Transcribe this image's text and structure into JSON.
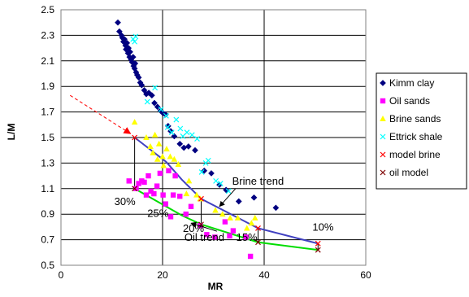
{
  "chart_data": {
    "type": "scatter",
    "xlabel": "MR",
    "ylabel": "L/M",
    "xlim": [
      0,
      60
    ],
    "ylim": [
      0.5,
      2.5
    ],
    "x_ticks": [
      "0",
      "20",
      "40",
      "60"
    ],
    "y_ticks": [
      "0.5",
      "0.7",
      "0.9",
      "1.1",
      "1.3",
      "1.5",
      "1.7",
      "1.9",
      "2.1",
      "2.3",
      "2.5"
    ],
    "grid": "major gridlines",
    "legend": "right",
    "series": [
      {
        "name": "Kimm clay",
        "marker": "diamond",
        "color": "#000080",
        "points": [
          [
            11.2,
            2.4
          ],
          [
            11.5,
            2.33
          ],
          [
            11.9,
            2.3
          ],
          [
            12.1,
            2.28
          ],
          [
            12.3,
            2.25
          ],
          [
            12.5,
            2.27
          ],
          [
            12.7,
            2.22
          ],
          [
            12.8,
            2.19
          ],
          [
            13.0,
            2.24
          ],
          [
            13.2,
            2.16
          ],
          [
            13.3,
            2.2
          ],
          [
            13.5,
            2.13
          ],
          [
            13.6,
            2.17
          ],
          [
            13.8,
            2.11
          ],
          [
            14.0,
            2.09
          ],
          [
            14.2,
            2.13
          ],
          [
            14.3,
            2.06
          ],
          [
            14.5,
            2.04
          ],
          [
            14.6,
            2.08
          ],
          [
            14.8,
            2.01
          ],
          [
            15.0,
            1.99
          ],
          [
            15.3,
            1.97
          ],
          [
            15.6,
            1.93
          ],
          [
            15.9,
            1.91
          ],
          [
            16.4,
            1.87
          ],
          [
            16.8,
            1.84
          ],
          [
            17.3,
            1.85
          ],
          [
            17.9,
            1.83
          ],
          [
            18.4,
            1.77
          ],
          [
            19.0,
            1.74
          ],
          [
            19.6,
            1.71
          ],
          [
            20.1,
            1.69
          ],
          [
            20.6,
            1.68
          ],
          [
            21.1,
            1.59
          ],
          [
            21.6,
            1.55
          ],
          [
            22.3,
            1.51
          ],
          [
            23.4,
            1.45
          ],
          [
            24.2,
            1.42
          ],
          [
            25.1,
            1.43
          ],
          [
            26.4,
            1.4
          ],
          [
            28.2,
            1.24
          ],
          [
            29.6,
            1.22
          ],
          [
            31.2,
            1.13
          ],
          [
            32.5,
            1.09
          ],
          [
            35.0,
            1.0
          ],
          [
            38.0,
            1.03
          ],
          [
            42.3,
            0.95
          ]
        ]
      },
      {
        "name": "Oil sands",
        "marker": "square",
        "color": "#ff00ff",
        "points": [
          [
            13.4,
            1.16
          ],
          [
            14.8,
            1.1
          ],
          [
            15.3,
            1.14
          ],
          [
            15.9,
            1.16
          ],
          [
            16.4,
            1.15
          ],
          [
            16.8,
            1.05
          ],
          [
            17.2,
            1.2
          ],
          [
            17.7,
            1.08
          ],
          [
            18.3,
            1.06
          ],
          [
            18.9,
            1.12
          ],
          [
            19.5,
            1.22
          ],
          [
            20.1,
            1.05
          ],
          [
            20.6,
            0.98
          ],
          [
            21.2,
            1.24
          ],
          [
            21.6,
            0.88
          ],
          [
            22.1,
            1.05
          ],
          [
            22.5,
            1.2
          ],
          [
            23.4,
            1.04
          ],
          [
            24.6,
            0.9
          ],
          [
            25.6,
            0.96
          ],
          [
            27.4,
            0.81
          ],
          [
            28.7,
            0.74
          ],
          [
            30.3,
            0.72
          ],
          [
            32.3,
            0.84
          ],
          [
            33.2,
            0.73
          ],
          [
            33.9,
            0.77
          ],
          [
            36.4,
            0.72
          ],
          [
            37.3,
            0.57
          ]
        ]
      },
      {
        "name": "Brine sands",
        "marker": "triangle",
        "color": "#ffff00",
        "points": [
          [
            14.5,
            1.62
          ],
          [
            16.8,
            1.5
          ],
          [
            17.6,
            1.43
          ],
          [
            18.1,
            1.38
          ],
          [
            18.5,
            1.52
          ],
          [
            19.0,
            1.33
          ],
          [
            19.3,
            1.45
          ],
          [
            20.0,
            1.35
          ],
          [
            20.2,
            1.28
          ],
          [
            20.8,
            1.41
          ],
          [
            21.5,
            1.35
          ],
          [
            22.3,
            1.33
          ],
          [
            23.1,
            1.29
          ],
          [
            24.7,
            1.06
          ],
          [
            25.2,
            1.16
          ],
          [
            26.7,
            1.05
          ],
          [
            27.4,
            1.02
          ],
          [
            30.4,
            0.93
          ],
          [
            31.8,
            0.9
          ],
          [
            33.3,
            0.87
          ],
          [
            34.8,
            0.87
          ],
          [
            36.6,
            0.79
          ],
          [
            37.5,
            0.83
          ],
          [
            38.2,
            0.87
          ]
        ]
      },
      {
        "name": "Ettrick shale",
        "marker": "x",
        "color": "#00ffff",
        "points": [
          [
            14.2,
            2.27
          ],
          [
            14.5,
            2.25
          ],
          [
            14.7,
            2.29
          ],
          [
            17.0,
            1.78
          ],
          [
            18.5,
            1.89
          ],
          [
            19.7,
            1.72
          ],
          [
            20.7,
            1.67
          ],
          [
            21.0,
            1.58
          ],
          [
            21.8,
            1.54
          ],
          [
            22.7,
            1.64
          ],
          [
            23.5,
            1.57
          ],
          [
            24.0,
            1.51
          ],
          [
            24.8,
            1.54
          ],
          [
            25.8,
            1.52
          ],
          [
            26.8,
            1.49
          ],
          [
            27.7,
            1.23
          ],
          [
            28.5,
            1.3
          ],
          [
            29.0,
            1.32
          ],
          [
            30.5,
            1.16
          ],
          [
            31.4,
            1.14
          ],
          [
            33.0,
            1.08
          ]
        ]
      },
      {
        "name": "model brine",
        "marker": "x",
        "color": "#ff0000",
        "points": [
          [
            14.5,
            1.5
          ],
          [
            27.6,
            1.02
          ],
          [
            38.8,
            0.79
          ],
          [
            50.6,
            0.67
          ]
        ]
      },
      {
        "name": "oil model",
        "marker": "x",
        "color": "#800000",
        "points": [
          [
            14.5,
            1.1
          ],
          [
            27.6,
            0.82
          ],
          [
            38.8,
            0.68
          ],
          [
            50.6,
            0.62
          ]
        ]
      }
    ],
    "trend_lines": [
      {
        "label": "Brine trend",
        "color": "#4040c0",
        "points": [
          [
            14.5,
            1.5
          ],
          [
            20.7,
            1.31
          ],
          [
            23.8,
            1.17
          ],
          [
            27.6,
            1.02
          ],
          [
            38.8,
            0.79
          ],
          [
            50.6,
            0.67
          ]
        ]
      },
      {
        "label": "Oil trend",
        "color": "#00dd00",
        "points": [
          [
            14.5,
            1.1
          ],
          [
            20.7,
            0.96
          ],
          [
            23.8,
            0.89
          ],
          [
            27.6,
            0.82
          ],
          [
            38.8,
            0.68
          ],
          [
            50.6,
            0.62
          ]
        ]
      }
    ],
    "percent_labels": [
      {
        "text": "30%",
        "at": [
          10.5,
          0.97
        ]
      },
      {
        "text": "25%",
        "at": [
          17.0,
          0.88
        ]
      },
      {
        "text": "20%",
        "at": [
          24.0,
          0.76
        ]
      },
      {
        "text": "15%",
        "at": [
          34.5,
          0.69
        ]
      },
      {
        "text": "10%",
        "at": [
          49.5,
          0.77
        ]
      }
    ],
    "trend_labels": [
      {
        "text": "Brine trend",
        "at": [
          33.7,
          1.13
        ],
        "arrow_to": [
          31.2,
          0.96
        ]
      },
      {
        "text": "Oil trend",
        "at": [
          24.3,
          0.69
        ],
        "arrow_to": [
          25.6,
          0.83
        ]
      }
    ],
    "red_arrow": {
      "from": [
        1.8,
        1.83
      ],
      "to": [
        13.7,
        1.53
      ]
    }
  }
}
